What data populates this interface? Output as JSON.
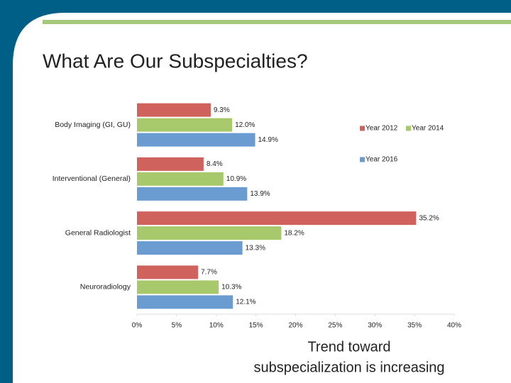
{
  "slide": {
    "title": "What Are Our Subspecialties?",
    "caption": [
      "Trend toward",
      "subspecialization is increasing"
    ]
  },
  "chart_data": {
    "type": "hbar",
    "categories": [
      "Body Imaging (GI, GU)",
      "Interventional (General)",
      "General Radiologist",
      "Neuroradiology"
    ],
    "series": [
      {
        "name": "Year 2012",
        "color": "#d0625d",
        "values": [
          9.3,
          8.4,
          35.2,
          7.7
        ],
        "value_labels": [
          "9.3%",
          "8.4%",
          "35.2%",
          "7.7%"
        ]
      },
      {
        "name": "Year 2014",
        "color": "#a8c96b",
        "values": [
          12.0,
          10.9,
          18.2,
          10.3
        ],
        "value_labels": [
          "12.0%",
          "10.9%",
          "18.2%",
          "10.3%"
        ]
      },
      {
        "name": "Year 2016",
        "color": "#6a9bd1",
        "values": [
          14.9,
          13.9,
          13.3,
          12.1
        ],
        "value_labels": [
          "14.9%",
          "13.9%",
          "13.3%",
          "12.1%"
        ]
      }
    ],
    "xlim": [
      0,
      40
    ],
    "xticks": [
      {
        "value": 0,
        "label": "0%"
      },
      {
        "value": 5,
        "label": "5%"
      },
      {
        "value": 10,
        "label": "10%"
      },
      {
        "value": 15,
        "label": "15%"
      },
      {
        "value": 20,
        "label": "20%"
      },
      {
        "value": 25,
        "label": "25%"
      },
      {
        "value": 30,
        "label": "30%"
      },
      {
        "value": 35,
        "label": "35%"
      },
      {
        "value": 40,
        "label": "40%"
      }
    ],
    "grid": false
  }
}
